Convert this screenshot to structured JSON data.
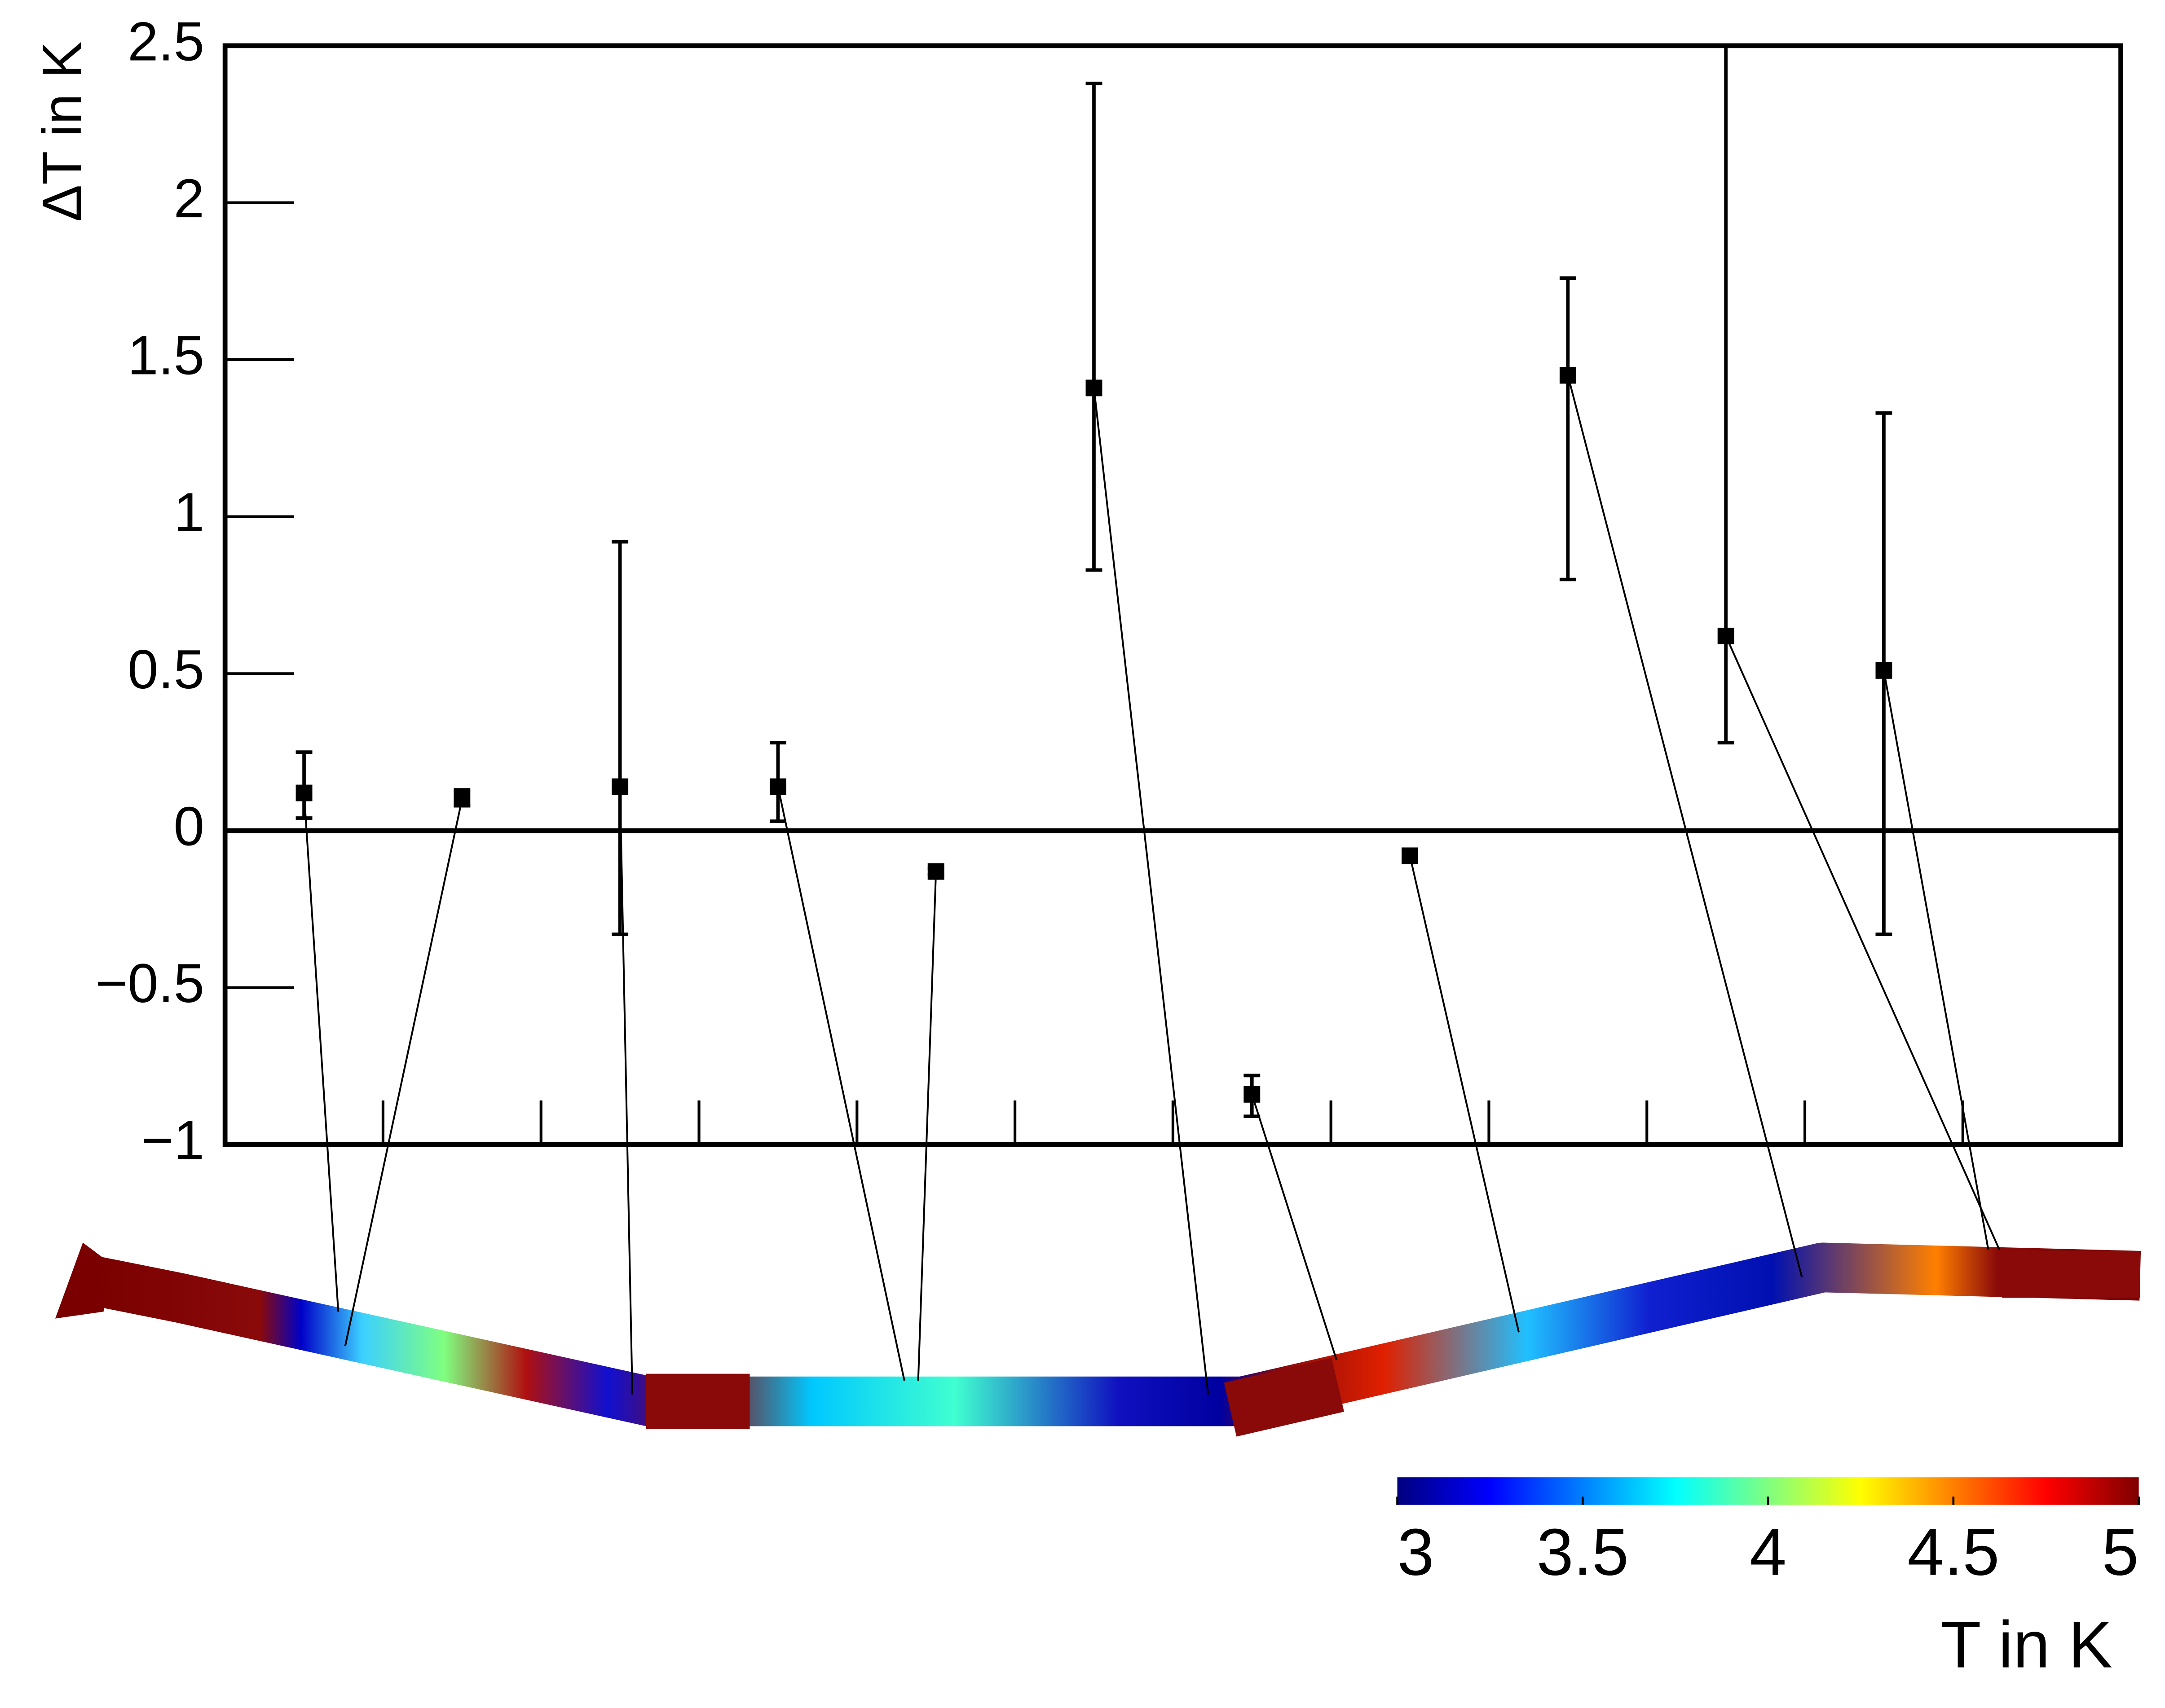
{
  "chart_data": {
    "type": "scatter",
    "y_label": "ΔT in K",
    "x": [
      0.5,
      1.5,
      2.5,
      3.5,
      4.5,
      5.5,
      6.5,
      7.5,
      8.5,
      9.5,
      10.5
    ],
    "values": [
      0.12,
      0.1,
      0.14,
      0.14,
      -0.13,
      1.41,
      -0.84,
      -0.08,
      1.45,
      0.62,
      0.51
    ],
    "error_high": [
      0.13,
      0.03,
      0.78,
      0.14,
      0.01,
      0.97,
      0.06,
      0.02,
      0.31,
      2.0,
      0.82
    ],
    "error_low": [
      0.08,
      0.02,
      0.47,
      0.11,
      0.01,
      0.58,
      0.07,
      0.02,
      0.65,
      0.34,
      0.84
    ],
    "color": "#000000",
    "xlim": [
      0,
      12
    ],
    "xticks": [
      1,
      2,
      3,
      4,
      5,
      6,
      7,
      8,
      9,
      10,
      11
    ],
    "ylim": [
      -1,
      2.5
    ],
    "yticks": [
      {
        "value": -1,
        "label": "−1"
      },
      {
        "value": -0.5,
        "label": "−0.5"
      },
      0,
      0.5,
      1,
      1.5,
      2,
      2.5
    ],
    "zero_line": true,
    "colorbar": {
      "label": "T in K",
      "lim": [
        3,
        5
      ],
      "ticks": [
        3,
        3.5,
        4,
        4.5,
        5
      ],
      "colormap": "jet"
    }
  }
}
